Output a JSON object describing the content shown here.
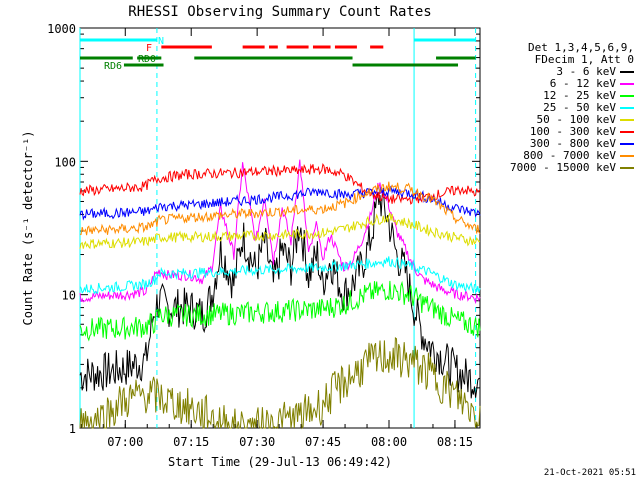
{
  "chart_data": {
    "type": "line",
    "title": "RHESSI Observing Summary Count Rates",
    "xlabel": "Start Time (29-Jul-13 06:49:42)",
    "ylabel": "Count Rate (s⁻¹ detector⁻¹)",
    "yscale": "log",
    "ylim": [
      1,
      1000
    ],
    "xlim_minutes": [
      0,
      91
    ],
    "y_ticks": [
      {
        "value": 1,
        "label": "1"
      },
      {
        "value": 10,
        "label": "10"
      },
      {
        "value": 100,
        "label": "100"
      },
      {
        "value": 1000,
        "label": "1000"
      }
    ],
    "x_ticks": [
      {
        "minute": 10.3,
        "label": "07:00"
      },
      {
        "minute": 25.3,
        "label": "07:15"
      },
      {
        "minute": 40.3,
        "label": "07:30"
      },
      {
        "minute": 55.3,
        "label": "07:45"
      },
      {
        "minute": 70.3,
        "label": "08:00"
      },
      {
        "minute": 85.3,
        "label": "08:15"
      }
    ],
    "legend_header": [
      "Det 1,3,4,5,6,9,",
      "FDecim 1, Att 0"
    ],
    "series": [
      {
        "name": "3 - 6 keV",
        "color": "#000000",
        "x": [
          0,
          5,
          10,
          15,
          17,
          18,
          20,
          25,
          28,
          30,
          32,
          35,
          37,
          40,
          42,
          44,
          46,
          48,
          50,
          52,
          54,
          55,
          57,
          60,
          62,
          64,
          66,
          68,
          70,
          72,
          74,
          76,
          78,
          80,
          82,
          84,
          86,
          88,
          90
        ],
        "values": [
          2.5,
          2.6,
          2.8,
          3.2,
          8,
          9,
          8,
          8,
          7,
          10,
          22,
          12,
          28,
          15,
          25,
          12,
          22,
          16,
          35,
          14,
          20,
          12,
          18,
          10,
          12,
          16,
          25,
          55,
          38,
          20,
          15,
          8,
          5,
          4,
          3.5,
          3,
          2.6,
          2.4,
          2.3
        ]
      },
      {
        "name": "6 - 12 keV",
        "color": "#ff00ff",
        "x": [
          0,
          5,
          10,
          15,
          17,
          18,
          20,
          25,
          28,
          30,
          32,
          35,
          37,
          40,
          42,
          44,
          46,
          48,
          50,
          52,
          54,
          55,
          57,
          60,
          62,
          64,
          66,
          68,
          70,
          72,
          74,
          76,
          78,
          80,
          82,
          84,
          86,
          88,
          90
        ],
        "values": [
          9.5,
          9.8,
          10,
          10.5,
          14,
          15,
          14,
          14,
          13,
          16,
          45,
          20,
          95,
          25,
          55,
          18,
          45,
          25,
          100,
          20,
          35,
          18,
          28,
          16,
          18,
          25,
          38,
          68,
          50,
          30,
          22,
          16,
          13,
          12,
          11,
          10.5,
          10,
          9.8,
          9.5
        ]
      },
      {
        "name": "12 - 25 keV",
        "color": "#00ff00",
        "x": [
          0,
          10,
          15,
          17,
          18,
          25,
          35,
          45,
          55,
          60,
          65,
          70,
          75,
          80,
          85,
          90
        ],
        "values": [
          5.5,
          5.6,
          5.8,
          6.2,
          7,
          7,
          7.2,
          7.5,
          7.8,
          8.5,
          10,
          11,
          10,
          8,
          6.5,
          5.8
        ]
      },
      {
        "name": "25 - 50 keV",
        "color": "#00ffff",
        "x": [
          0,
          10,
          15,
          17,
          18,
          25,
          35,
          45,
          55,
          60,
          65,
          70,
          75,
          80,
          85,
          90
        ],
        "values": [
          11,
          11.5,
          12,
          13,
          14.5,
          14.5,
          15,
          15.5,
          16,
          16.5,
          17,
          18,
          16.5,
          14.5,
          12,
          11
        ]
      },
      {
        "name": "50 - 100 keV",
        "color": "#dddd00",
        "x": [
          0,
          10,
          15,
          17,
          18,
          25,
          35,
          45,
          55,
          60,
          65,
          70,
          75,
          80,
          85,
          90
        ],
        "values": [
          24,
          24.5,
          25,
          26,
          27,
          27,
          27.5,
          28,
          29,
          31,
          35,
          38,
          34,
          30,
          27,
          25
        ]
      },
      {
        "name": "100 - 300 keV",
        "color": "#ff0000",
        "x": [
          0,
          8,
          15,
          16,
          17,
          18,
          25,
          35,
          45,
          50,
          55,
          60,
          65,
          70,
          75,
          80,
          85,
          87,
          90
        ],
        "values": [
          60,
          62,
          65,
          70,
          72,
          75,
          80,
          82,
          85,
          85,
          88,
          80,
          60,
          52,
          52,
          55,
          60,
          62,
          58
        ]
      },
      {
        "name": "300 - 800 keV",
        "color": "#0000ff",
        "x": [
          0,
          10,
          15,
          17,
          18,
          25,
          35,
          45,
          55,
          60,
          65,
          70,
          75,
          80,
          85,
          90
        ],
        "values": [
          40,
          41,
          42,
          44,
          46,
          47,
          50,
          54,
          60,
          56,
          58,
          60,
          58,
          52,
          45,
          41
        ]
      },
      {
        "name": "800 - 7000 keV",
        "color": "#ff8c00",
        "x": [
          0,
          10,
          15,
          17,
          18,
          25,
          35,
          45,
          55,
          60,
          65,
          70,
          75,
          80,
          85,
          90
        ],
        "values": [
          30,
          31,
          32,
          34,
          36,
          38,
          40,
          42,
          44,
          48,
          58,
          65,
          62,
          52,
          38,
          31
        ]
      },
      {
        "name": "7000 - 15000 keV",
        "color": "#808000",
        "x": [
          0,
          5,
          10,
          15,
          18,
          20,
          25,
          30,
          35,
          40,
          45,
          50,
          55,
          60,
          65,
          70,
          75,
          80,
          85,
          90
        ],
        "values": [
          1.1,
          1.2,
          1.6,
          1.8,
          1.7,
          1.6,
          1.4,
          1.2,
          1.0,
          1.0,
          1.1,
          1.2,
          1.5,
          2.2,
          3,
          3.5,
          3.2,
          2.5,
          1.8,
          1.3
        ]
      }
    ],
    "flags": [
      {
        "name": "N",
        "color": "#00ffff",
        "y_row": 0,
        "segments": [
          [
            0,
            17.5
          ],
          [
            76,
            90
          ]
        ]
      },
      {
        "name": "F",
        "color": "#ff0000",
        "y_row": 1,
        "segments": [
          [
            18.5,
            30
          ],
          [
            37,
            42
          ],
          [
            43,
            45
          ],
          [
            47,
            52
          ],
          [
            53,
            57
          ],
          [
            58,
            63
          ],
          [
            66,
            69
          ]
        ]
      },
      {
        "name": "RD0",
        "color": "#008000",
        "y_row": 2,
        "segments": [
          [
            0,
            12
          ],
          [
            13,
            18.5
          ],
          [
            26,
            62
          ],
          [
            81,
            90
          ]
        ]
      },
      {
        "name": "RD6",
        "color": "#008000",
        "y_row": 3,
        "segments": [
          [
            10,
            19
          ],
          [
            62,
            86
          ]
        ]
      }
    ],
    "vertical_lines": [
      {
        "minute": 0,
        "color": "#00ffff",
        "style": "solid"
      },
      {
        "minute": 17.5,
        "color": "#00ffff",
        "style": "dashed"
      },
      {
        "minute": 76,
        "color": "#00ffff",
        "style": "solid"
      },
      {
        "minute": 90,
        "color": "#00ffff",
        "style": "dashed"
      }
    ]
  },
  "footer": {
    "date": "21-Oct-2021 05:51"
  }
}
